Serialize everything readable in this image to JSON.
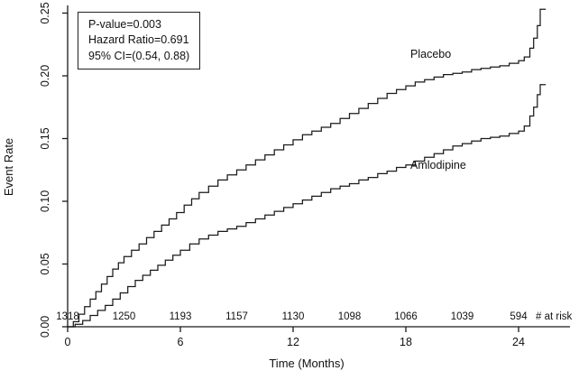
{
  "figure": {
    "background": "#ffffff",
    "line_color": "#1a1a1a"
  },
  "chart_data": {
    "type": "line",
    "title": "",
    "xlabel": "Time (Months)",
    "ylabel": "Event Rate",
    "xlim": [
      0,
      25.5
    ],
    "ylim": [
      0,
      0.25
    ],
    "x_ticks": [
      0,
      6,
      12,
      18,
      24
    ],
    "y_ticks": [
      "0.00",
      "0.05",
      "0.10",
      "0.15",
      "0.20",
      "0.25"
    ],
    "grid": false,
    "legend_position": "on-curve-labels",
    "step": "after",
    "annotation": {
      "lines": [
        "P-value=0.003",
        "Hazard Ratio=0.691",
        "95% CI=(0.54, 0.88)"
      ]
    },
    "at_risk": {
      "label": "# at risk",
      "months": [
        0,
        3,
        6,
        9,
        12,
        15,
        18,
        21,
        24
      ],
      "counts": [
        1318,
        1250,
        1193,
        1157,
        1130,
        1098,
        1066,
        1039,
        594
      ]
    },
    "series": [
      {
        "name": "Placebo",
        "points": [
          [
            0,
            0
          ],
          [
            0.3,
            0.004
          ],
          [
            0.6,
            0.01
          ],
          [
            0.9,
            0.016
          ],
          [
            1.2,
            0.022
          ],
          [
            1.5,
            0.028
          ],
          [
            1.8,
            0.034
          ],
          [
            2.1,
            0.04
          ],
          [
            2.4,
            0.046
          ],
          [
            2.7,
            0.051
          ],
          [
            3,
            0.056
          ],
          [
            3.4,
            0.061
          ],
          [
            3.8,
            0.066
          ],
          [
            4.2,
            0.071
          ],
          [
            4.6,
            0.076
          ],
          [
            5,
            0.081
          ],
          [
            5.4,
            0.086
          ],
          [
            5.8,
            0.091
          ],
          [
            6.2,
            0.097
          ],
          [
            6.6,
            0.102
          ],
          [
            7,
            0.107
          ],
          [
            7.5,
            0.112
          ],
          [
            8,
            0.117
          ],
          [
            8.5,
            0.121
          ],
          [
            9,
            0.125
          ],
          [
            9.5,
            0.129
          ],
          [
            10,
            0.133
          ],
          [
            10.5,
            0.137
          ],
          [
            11,
            0.141
          ],
          [
            11.5,
            0.145
          ],
          [
            12,
            0.149
          ],
          [
            12.5,
            0.153
          ],
          [
            13,
            0.156
          ],
          [
            13.5,
            0.159
          ],
          [
            14,
            0.162
          ],
          [
            14.5,
            0.166
          ],
          [
            15,
            0.17
          ],
          [
            15.5,
            0.174
          ],
          [
            16,
            0.178
          ],
          [
            16.5,
            0.182
          ],
          [
            17,
            0.186
          ],
          [
            17.5,
            0.189
          ],
          [
            18,
            0.192
          ],
          [
            18.5,
            0.195
          ],
          [
            19,
            0.197
          ],
          [
            19.5,
            0.199
          ],
          [
            20,
            0.201
          ],
          [
            20.5,
            0.202
          ],
          [
            21,
            0.203
          ],
          [
            21.5,
            0.205
          ],
          [
            22,
            0.206
          ],
          [
            22.5,
            0.207
          ],
          [
            23,
            0.208
          ],
          [
            23.5,
            0.21
          ],
          [
            24,
            0.212
          ],
          [
            24.3,
            0.215
          ],
          [
            24.6,
            0.222
          ],
          [
            24.8,
            0.23
          ],
          [
            25,
            0.24
          ],
          [
            25.15,
            0.253
          ],
          [
            25.45,
            0.253
          ]
        ]
      },
      {
        "name": "Amlodipine",
        "points": [
          [
            0,
            0
          ],
          [
            0.4,
            0.002
          ],
          [
            0.8,
            0.005
          ],
          [
            1.2,
            0.009
          ],
          [
            1.6,
            0.013
          ],
          [
            2,
            0.017
          ],
          [
            2.4,
            0.022
          ],
          [
            2.8,
            0.027
          ],
          [
            3.2,
            0.032
          ],
          [
            3.6,
            0.037
          ],
          [
            4,
            0.041
          ],
          [
            4.4,
            0.045
          ],
          [
            4.8,
            0.049
          ],
          [
            5.2,
            0.053
          ],
          [
            5.6,
            0.057
          ],
          [
            6,
            0.061
          ],
          [
            6.5,
            0.066
          ],
          [
            7,
            0.07
          ],
          [
            7.5,
            0.073
          ],
          [
            8,
            0.076
          ],
          [
            8.5,
            0.078
          ],
          [
            9,
            0.08
          ],
          [
            9.5,
            0.083
          ],
          [
            10,
            0.086
          ],
          [
            10.5,
            0.089
          ],
          [
            11,
            0.092
          ],
          [
            11.5,
            0.095
          ],
          [
            12,
            0.098
          ],
          [
            12.5,
            0.101
          ],
          [
            13,
            0.104
          ],
          [
            13.5,
            0.107
          ],
          [
            14,
            0.11
          ],
          [
            14.5,
            0.112
          ],
          [
            15,
            0.114
          ],
          [
            15.5,
            0.117
          ],
          [
            16,
            0.119
          ],
          [
            16.5,
            0.122
          ],
          [
            17,
            0.124
          ],
          [
            17.5,
            0.127
          ],
          [
            18,
            0.129
          ],
          [
            18.5,
            0.132
          ],
          [
            19,
            0.135
          ],
          [
            19.5,
            0.138
          ],
          [
            20,
            0.141
          ],
          [
            20.5,
            0.144
          ],
          [
            21,
            0.146
          ],
          [
            21.5,
            0.148
          ],
          [
            22,
            0.15
          ],
          [
            22.5,
            0.151
          ],
          [
            23,
            0.152
          ],
          [
            23.5,
            0.154
          ],
          [
            24,
            0.156
          ],
          [
            24.3,
            0.16
          ],
          [
            24.6,
            0.168
          ],
          [
            24.8,
            0.175
          ],
          [
            25,
            0.185
          ],
          [
            25.15,
            0.193
          ],
          [
            25.45,
            0.193
          ]
        ]
      }
    ]
  }
}
